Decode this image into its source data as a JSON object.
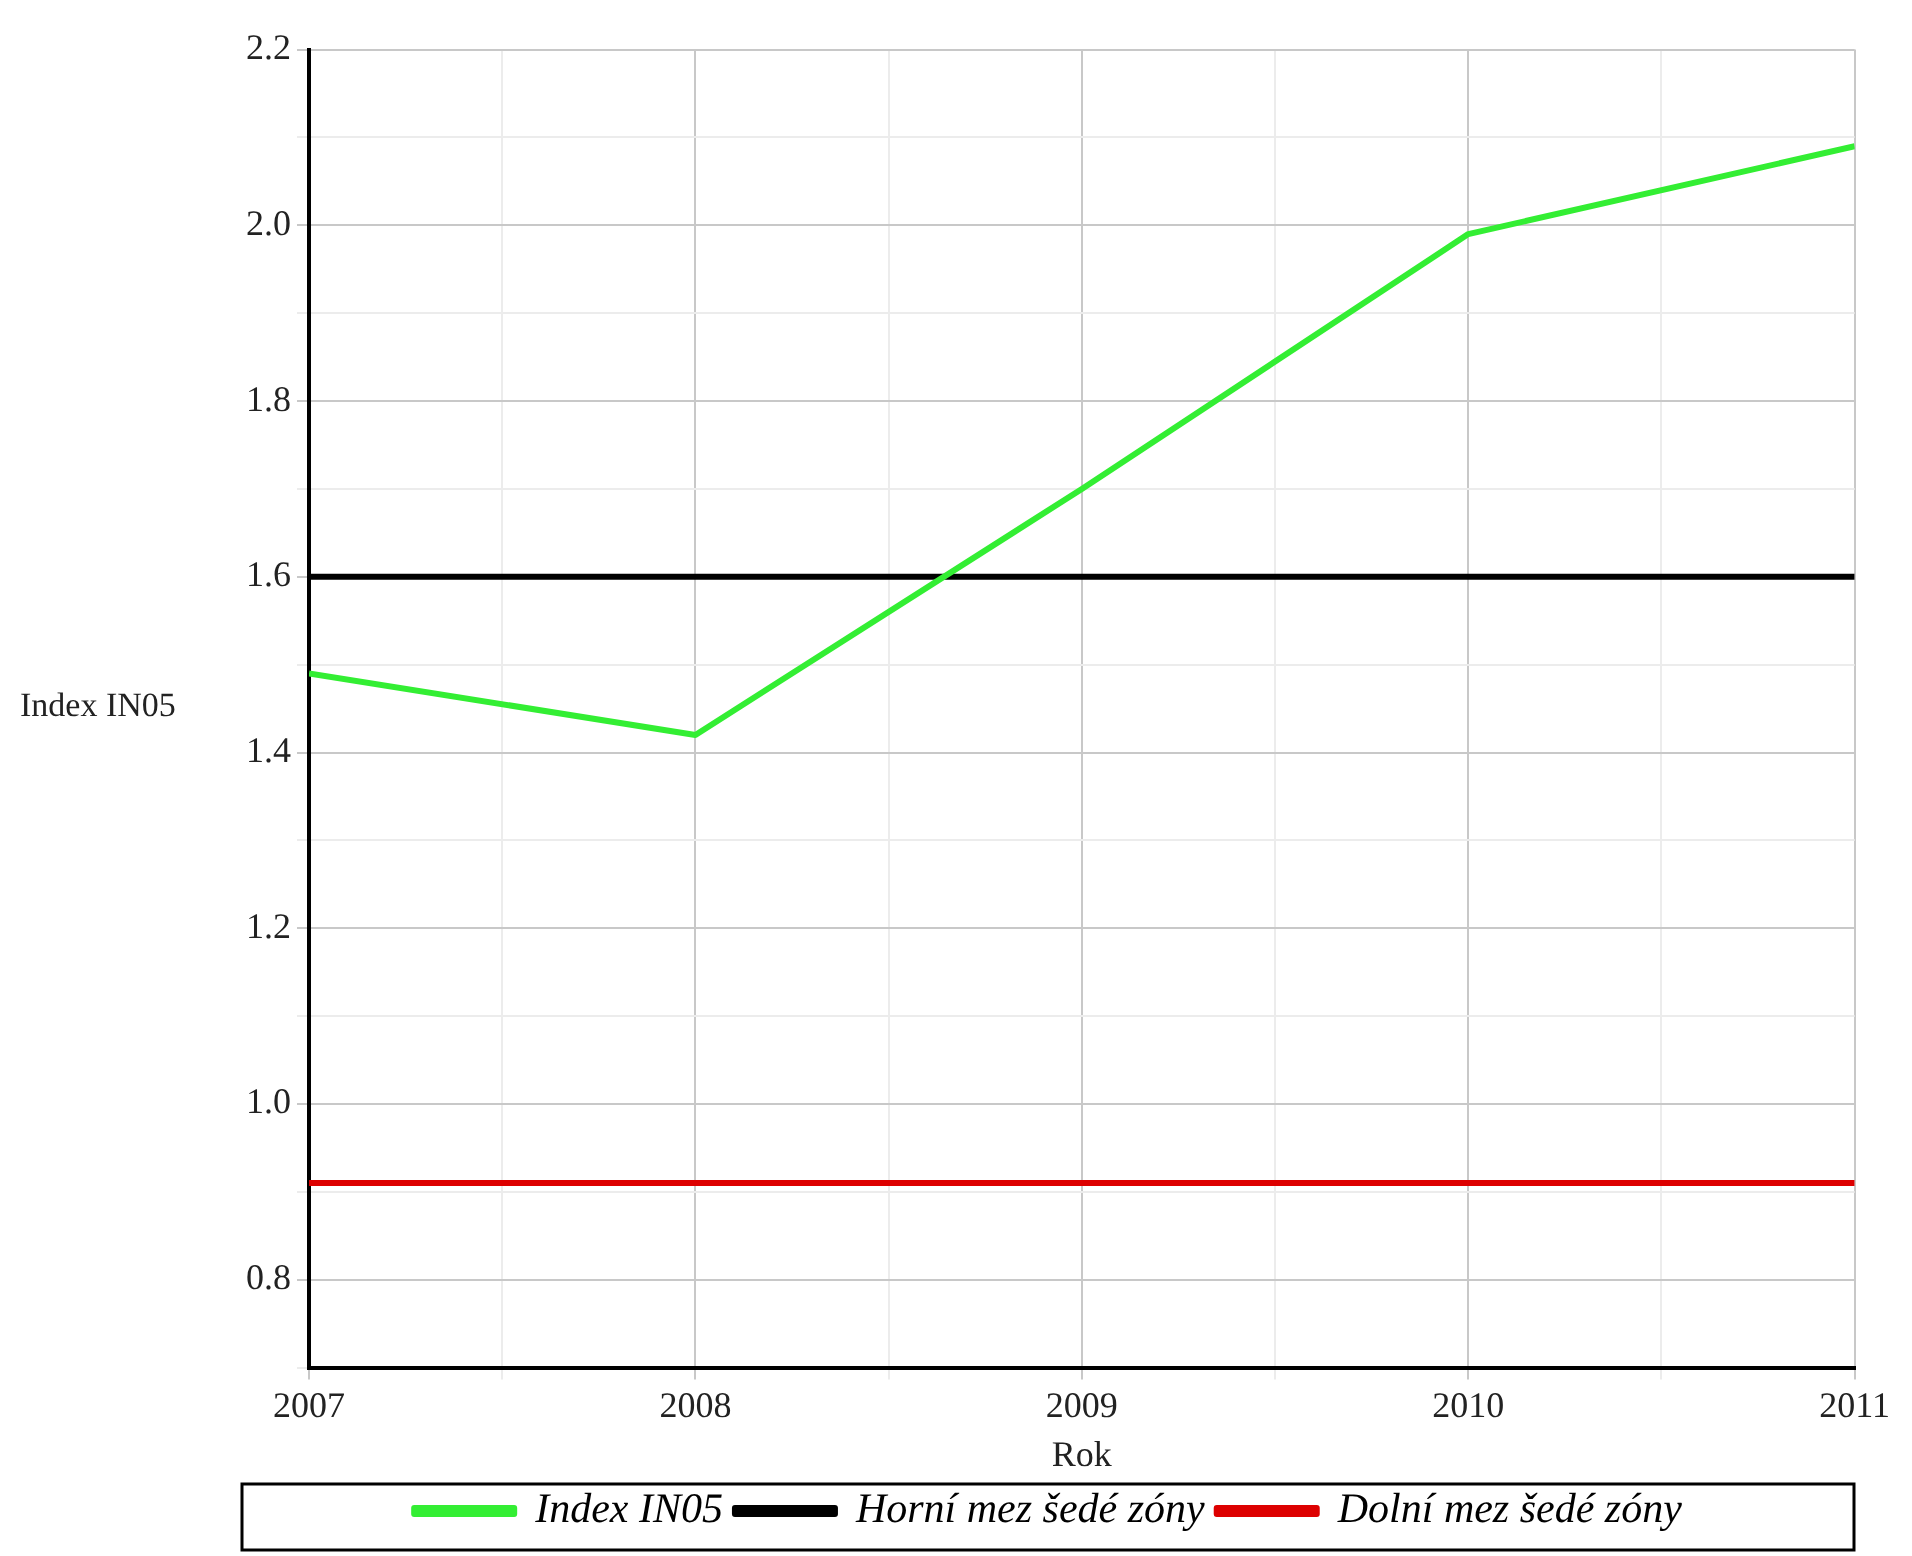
{
  "chart_data": {
    "type": "line",
    "xlabel": "Rok",
    "ylabel": "Index IN05",
    "x": [
      2007,
      2008,
      2009,
      2010,
      2011
    ],
    "series": [
      {
        "name": "Index IN05",
        "color": "#33ee33",
        "values": [
          1.49,
          1.42,
          1.7,
          1.99,
          2.09
        ]
      },
      {
        "name": "Horní mez šedé zóny",
        "color": "#000000",
        "values": [
          1.6,
          1.6,
          1.6,
          1.6,
          1.6
        ]
      },
      {
        "name": "Dolní mez šedé zóny",
        "color": "#dd0000",
        "values": [
          0.91,
          0.91,
          0.91,
          0.91,
          0.91
        ]
      }
    ],
    "xlim": [
      2007,
      2011
    ],
    "xticks": [
      2007,
      {
        "value": 2007.5,
        "label": null
      },
      2008,
      {
        "value": 2008.5,
        "label": null
      },
      2009,
      {
        "value": 2009.5,
        "label": null
      },
      2010,
      {
        "value": 2010.5,
        "label": null
      },
      2011
    ],
    "ylim": [
      0.7,
      2.2
    ],
    "yticks": [
      {
        "value": 0.7,
        "label": null
      },
      0.8,
      {
        "value": 0.9,
        "label": null
      },
      {
        "value": 1,
        "label": "1.0"
      },
      {
        "value": 1.1,
        "label": null
      },
      1.2,
      {
        "value": 1.3,
        "label": null
      },
      1.4,
      {
        "value": 1.5,
        "label": null
      },
      1.6,
      {
        "value": 1.7,
        "label": null
      },
      1.8,
      {
        "value": 1.9,
        "label": null
      },
      {
        "value": 2,
        "label": "2.0"
      },
      {
        "value": 2.1,
        "label": null
      },
      2.2
    ],
    "grid": true,
    "legend": "bottom",
    "marker": "none",
    "line_style": "solid"
  }
}
